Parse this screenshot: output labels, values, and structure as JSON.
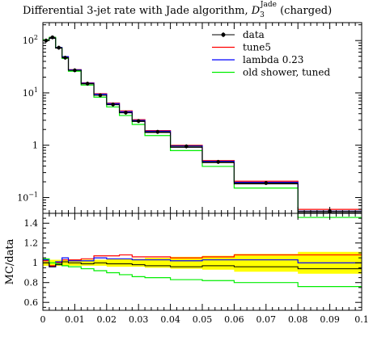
{
  "chart_data": {
    "type": "line",
    "title_prefix": "Differential 3-jet rate with Jade algorithm, ",
    "title_symbol": "D",
    "title_sub": "3",
    "title_sup": "Jade",
    "title_suffix": " (charged)",
    "xlim": [
      0,
      0.1
    ],
    "x_ticks": [
      "0",
      "0.01",
      "0.02",
      "0.03",
      "0.04",
      "0.05",
      "0.06",
      "0.07",
      "0.08",
      "0.09",
      "0.1"
    ],
    "main": {
      "scale": "log",
      "ylim": [
        0.05,
        220
      ],
      "y_ticks": [
        {
          "value": 100,
          "base": "10",
          "exp": "2"
        },
        {
          "value": 10,
          "base": "10",
          "exp": "1"
        },
        {
          "value": 1,
          "base": "1",
          "exp": ""
        },
        {
          "value": 0.1,
          "base": "10",
          "exp": "−1"
        }
      ]
    },
    "ratio": {
      "ylabel": "MC/data",
      "ylim": [
        0.52,
        1.5
      ],
      "y_ticks": [
        "0.6",
        "0.8",
        "1",
        "1.2",
        "1.4"
      ],
      "band_color": "#ffff00"
    },
    "bin_edges": [
      0,
      0.002,
      0.004,
      0.006,
      0.008,
      0.012,
      0.016,
      0.02,
      0.024,
      0.028,
      0.032,
      0.04,
      0.05,
      0.06,
      0.08,
      0.1
    ],
    "data": {
      "name": "data",
      "values": [
        100,
        115,
        73,
        47,
        27,
        15,
        9.0,
        6.0,
        4.2,
        2.9,
        1.8,
        0.95,
        0.48,
        0.19,
        0.055
      ],
      "band_low": [
        0.97,
        0.97,
        0.97,
        0.97,
        0.97,
        0.97,
        0.97,
        0.96,
        0.96,
        0.96,
        0.95,
        0.94,
        0.93,
        0.91,
        0.89
      ],
      "band_high": [
        1.03,
        1.03,
        1.03,
        1.03,
        1.03,
        1.03,
        1.03,
        1.04,
        1.04,
        1.04,
        1.05,
        1.06,
        1.07,
        1.09,
        1.11
      ]
    },
    "series": [
      {
        "name": "tune5",
        "color": "#ff0000",
        "ratio": [
          1.02,
          0.97,
          1.0,
          1.03,
          1.03,
          1.04,
          1.07,
          1.07,
          1.08,
          1.06,
          1.06,
          1.05,
          1.06,
          1.08,
          1.08
        ]
      },
      {
        "name": "lambda 0.23",
        "color": "#0000ff",
        "ratio": [
          1.03,
          0.96,
          1.01,
          1.05,
          1.02,
          1.02,
          1.05,
          1.04,
          1.04,
          1.03,
          1.03,
          1.02,
          1.03,
          1.03,
          1.0
        ]
      },
      {
        "name": "old shower, tuned",
        "color": "#00ee00",
        "ratio": [
          1.04,
          1.0,
          0.99,
          0.97,
          0.96,
          0.94,
          0.92,
          0.9,
          0.88,
          0.86,
          0.85,
          0.83,
          0.82,
          0.8,
          0.76
        ]
      }
    ],
    "mc_total_ratio": [
      1.0,
      0.96,
      0.98,
      1.01,
      1.0,
      0.99,
      1.0,
      0.99,
      0.99,
      0.98,
      0.97,
      0.96,
      0.97,
      0.96,
      0.94
    ]
  }
}
